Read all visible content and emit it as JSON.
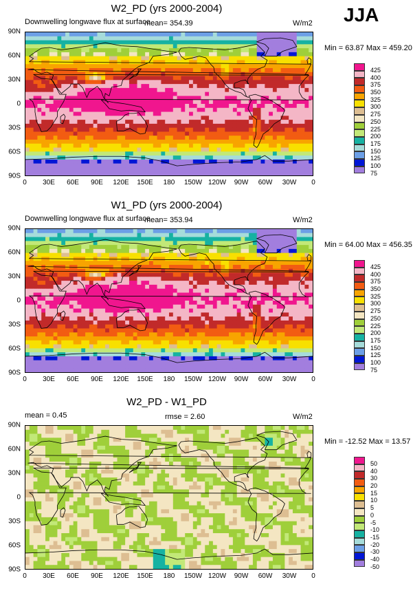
{
  "season": "JJA",
  "units": "W/m2",
  "axes": {
    "lat_ticks": [
      "90N",
      "60N",
      "30N",
      "0",
      "30S",
      "60S",
      "90S"
    ],
    "lon_ticks": [
      "0",
      "30E",
      "60E",
      "90E",
      "120E",
      "150E",
      "180",
      "150W",
      "120W",
      "90W",
      "60W",
      "30W",
      "0"
    ]
  },
  "palette": {
    "c425": "#f0168e",
    "c400": "#f4b6c6",
    "c375": "#c12a2a",
    "c350": "#f25c12",
    "c325": "#f8a400",
    "c300": "#f8e000",
    "c275": "#ddbe92",
    "c250": "#f4e6c2",
    "c225": "#9fcf3a",
    "c200": "#c2e878",
    "c175": "#16b2a2",
    "c150": "#a6dcda",
    "c125": "#6c9fe6",
    "c100": "#0016d6",
    "c75": "#a27ede"
  },
  "chart_data": [
    {
      "type": "heatmap",
      "title": "W2_PD (yrs 2000-2004)",
      "subtitle": "Downwelling longwave flux at surface",
      "mean_text": "mean= 354.39",
      "units": "W/m2",
      "minmax_text": "Min =  63.87 Max = 459.20",
      "min": 63.87,
      "max": 459.2,
      "mean": 354.39,
      "levels": [
        "425",
        "400",
        "375",
        "350",
        "325",
        "300",
        "275",
        "250",
        "225",
        "200",
        "175",
        "150",
        "125",
        "100",
        "75"
      ],
      "colors": [
        "#f0168e",
        "#f4b6c6",
        "#c12a2a",
        "#f25c12",
        "#f8a400",
        "#f8e000",
        "#ddbe92",
        "#f4e6c2",
        "#9fcf3a",
        "#c2e878",
        "#16b2a2",
        "#a6dcda",
        "#6c9fe6",
        "#0016d6",
        "#a27ede"
      ],
      "variant": "abs1"
    },
    {
      "type": "heatmap",
      "title": "W1_PD (yrs 2000-2004)",
      "subtitle": "Downwelling longwave flux at surface",
      "mean_text": "mean= 353.94",
      "units": "W/m2",
      "minmax_text": "Min =  64.00 Max = 456.35",
      "min": 64.0,
      "max": 456.35,
      "mean": 353.94,
      "levels": [
        "425",
        "400",
        "375",
        "350",
        "325",
        "300",
        "275",
        "250",
        "225",
        "200",
        "175",
        "150",
        "125",
        "100",
        "75"
      ],
      "colors": [
        "#f0168e",
        "#f4b6c6",
        "#c12a2a",
        "#f25c12",
        "#f8a400",
        "#f8e000",
        "#ddbe92",
        "#f4e6c2",
        "#9fcf3a",
        "#c2e878",
        "#16b2a2",
        "#a6dcda",
        "#6c9fe6",
        "#0016d6",
        "#a27ede"
      ],
      "variant": "abs2"
    },
    {
      "type": "heatmap",
      "title": "W2_PD - W1_PD",
      "mean_text": "mean =   0.45",
      "rmse_text": "rmse =   2.60",
      "units": "W/m2",
      "minmax_text": "Min = -12.52 Max =  13.57",
      "min": -12.52,
      "max": 13.57,
      "mean": 0.45,
      "rmse": 2.6,
      "levels": [
        "50",
        "40",
        "30",
        "20",
        "15",
        "10",
        "5",
        "0",
        "-5",
        "-10",
        "-15",
        "-20",
        "-30",
        "-40",
        "-50"
      ],
      "colors": [
        "#f0168e",
        "#f4b6c6",
        "#c12a2a",
        "#f25c12",
        "#f8a400",
        "#f8e000",
        "#ddbe92",
        "#f4e6c2",
        "#9fcf3a",
        "#c2e878",
        "#16b2a2",
        "#a6dcda",
        "#6c9fe6",
        "#0016d6",
        "#a27ede"
      ],
      "variant": "diff"
    }
  ]
}
